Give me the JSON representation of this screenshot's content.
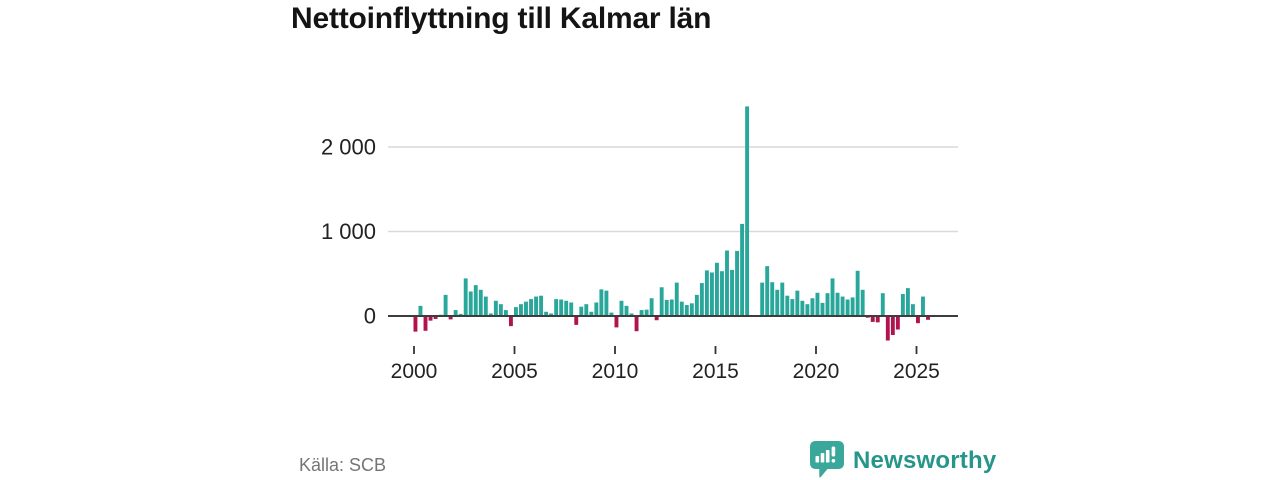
{
  "title": "Nettoinflyttning till Kalmar län",
  "source": "Källa: SCB",
  "brand": {
    "name": "Newsworthy",
    "icon": "newsworthy-pin-barchart-icon"
  },
  "colors": {
    "positive": "#2aa79b",
    "negative": "#b1134e",
    "grid": "#d9d9d9",
    "axis": "#3d3d3d",
    "tick": "#333333",
    "label": "#222222",
    "muted": "#757575",
    "brand_text": "#26968a",
    "brand_icon": "#3aa79b"
  },
  "chart_data": {
    "type": "bar",
    "title": "Nettoinflyttning till Kalmar län",
    "series_name": "Nettoinflyttning per kvartal",
    "frequency": "quarterly",
    "start": "2000-Q1",
    "end": "2025-Q3",
    "xlabel": "",
    "ylabel": "",
    "grid": "horizontal",
    "legend": "none",
    "ylim": [
      -350,
      2600
    ],
    "yticks": [
      {
        "value": 0,
        "label": "0"
      },
      {
        "value": 1000,
        "label": "1 000"
      },
      {
        "value": 2000,
        "label": "2 000"
      }
    ],
    "xticks": [
      {
        "value": 2000,
        "label": "2000"
      },
      {
        "value": 2005,
        "label": "2005"
      },
      {
        "value": 2010,
        "label": "2010"
      },
      {
        "value": 2015,
        "label": "2015"
      },
      {
        "value": 2020,
        "label": "2020"
      },
      {
        "value": 2025,
        "label": "2025"
      }
    ],
    "values": [
      -185,
      120,
      -175,
      -55,
      -35,
      15,
      250,
      -40,
      70,
      25,
      445,
      290,
      365,
      310,
      230,
      30,
      180,
      140,
      70,
      -120,
      105,
      140,
      170,
      200,
      230,
      240,
      50,
      30,
      200,
      195,
      180,
      160,
      -105,
      110,
      140,
      50,
      160,
      315,
      300,
      40,
      -135,
      180,
      120,
      30,
      -180,
      70,
      75,
      210,
      -50,
      340,
      190,
      195,
      395,
      170,
      130,
      150,
      250,
      390,
      540,
      515,
      630,
      530,
      775,
      545,
      770,
      1090,
      2480,
      10,
      10,
      395,
      590,
      400,
      310,
      395,
      240,
      200,
      300,
      180,
      140,
      210,
      275,
      155,
      270,
      445,
      275,
      230,
      195,
      220,
      535,
      310,
      -20,
      -70,
      -75,
      270,
      -290,
      -225,
      -160,
      260,
      330,
      140,
      -85,
      230,
      -45
    ]
  }
}
